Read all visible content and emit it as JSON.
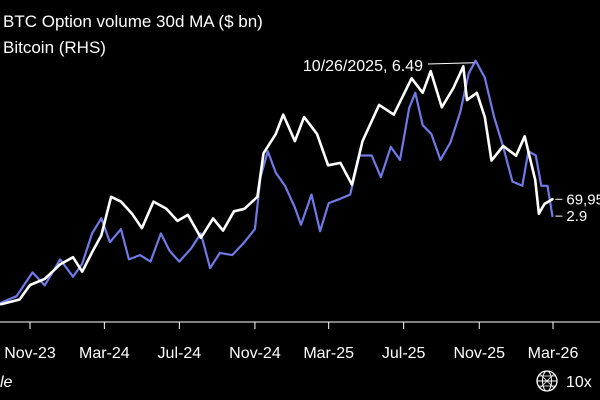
{
  "chart_data": {
    "type": "line",
    "legend": [
      "BTC Option volume 30d MA ($ bn)",
      "Bitcoin (RHS)"
    ],
    "legend_placement": "top-left",
    "x_ticks": [
      "Nov-23",
      "Mar-24",
      "Jul-24",
      "Nov-24",
      "Mar-25",
      "Jul-25",
      "Nov-25",
      "Mar-26"
    ],
    "grid": false,
    "y_left": {
      "unit": "$ bn",
      "range": [
        0.5,
        7.2
      ],
      "labels_visible": false
    },
    "y_right": {
      "unit": "USD",
      "range": [
        20000,
        140000
      ],
      "labels_visible": false
    },
    "series": [
      {
        "name": "BTC Option volume 30d MA ($ bn)",
        "color": "#6f7ae6",
        "axis": "left",
        "points": [
          [
            "2023-09-15",
            0.9
          ],
          [
            "2023-10-10",
            1.05
          ],
          [
            "2023-11-05",
            1.6
          ],
          [
            "2023-11-25",
            1.3
          ],
          [
            "2023-12-20",
            1.9
          ],
          [
            "2024-01-10",
            1.5
          ],
          [
            "2024-01-25",
            1.8
          ],
          [
            "2024-02-10",
            2.5
          ],
          [
            "2024-02-25",
            2.85
          ],
          [
            "2024-03-10",
            2.3
          ],
          [
            "2024-03-28",
            2.6
          ],
          [
            "2024-04-10",
            1.9
          ],
          [
            "2024-04-28",
            2.0
          ],
          [
            "2024-05-15",
            1.85
          ],
          [
            "2024-06-01",
            2.5
          ],
          [
            "2024-06-15",
            2.1
          ],
          [
            "2024-07-01",
            1.85
          ],
          [
            "2024-07-20",
            2.15
          ],
          [
            "2024-08-05",
            2.5
          ],
          [
            "2024-08-20",
            1.7
          ],
          [
            "2024-09-05",
            2.05
          ],
          [
            "2024-09-25",
            2.0
          ],
          [
            "2024-10-15",
            2.3
          ],
          [
            "2024-11-01",
            2.6
          ],
          [
            "2024-11-10",
            3.8
          ],
          [
            "2024-11-22",
            4.4
          ],
          [
            "2024-12-05",
            3.9
          ],
          [
            "2024-12-20",
            3.6
          ],
          [
            "2025-01-05",
            3.1
          ],
          [
            "2025-01-15",
            2.7
          ],
          [
            "2025-02-01",
            3.4
          ],
          [
            "2025-02-15",
            2.55
          ],
          [
            "2025-03-01",
            3.2
          ],
          [
            "2025-03-20",
            3.3
          ],
          [
            "2025-04-05",
            3.4
          ],
          [
            "2025-04-20",
            4.3
          ],
          [
            "2025-05-10",
            4.3
          ],
          [
            "2025-05-25",
            3.8
          ],
          [
            "2025-06-10",
            4.5
          ],
          [
            "2025-06-25",
            4.2
          ],
          [
            "2025-07-10",
            5.4
          ],
          [
            "2025-07-20",
            5.75
          ],
          [
            "2025-08-01",
            5.0
          ],
          [
            "2025-08-15",
            4.8
          ],
          [
            "2025-08-30",
            4.2
          ],
          [
            "2025-09-15",
            4.6
          ],
          [
            "2025-10-01",
            5.3
          ],
          [
            "2025-10-15",
            6.2
          ],
          [
            "2025-10-26",
            6.49
          ],
          [
            "2025-11-10",
            6.1
          ],
          [
            "2025-11-25",
            5.2
          ],
          [
            "2025-12-10",
            4.5
          ],
          [
            "2025-12-25",
            3.7
          ],
          [
            "2026-01-10",
            3.6
          ],
          [
            "2026-01-20",
            4.4
          ],
          [
            "2026-02-01",
            4.3
          ],
          [
            "2026-02-10",
            3.6
          ],
          [
            "2026-02-20",
            3.6
          ],
          [
            "2026-02-28",
            2.9
          ]
        ]
      },
      {
        "name": "Bitcoin (RHS)",
        "color": "#ffffff",
        "axis": "right",
        "points": [
          [
            "2023-09-15",
            26500
          ],
          [
            "2023-10-15",
            28500
          ],
          [
            "2023-11-01",
            34500
          ],
          [
            "2023-11-25",
            37000
          ],
          [
            "2023-12-20",
            43000
          ],
          [
            "2024-01-10",
            46000
          ],
          [
            "2024-01-25",
            40000
          ],
          [
            "2024-02-10",
            48000
          ],
          [
            "2024-02-25",
            55000
          ],
          [
            "2024-03-12",
            71000
          ],
          [
            "2024-03-28",
            69000
          ],
          [
            "2024-04-15",
            64000
          ],
          [
            "2024-05-01",
            58000
          ],
          [
            "2024-05-20",
            69000
          ],
          [
            "2024-06-10",
            66000
          ],
          [
            "2024-06-28",
            61000
          ],
          [
            "2024-07-15",
            63500
          ],
          [
            "2024-08-05",
            54000
          ],
          [
            "2024-08-25",
            62000
          ],
          [
            "2024-09-10",
            57000
          ],
          [
            "2024-09-28",
            65000
          ],
          [
            "2024-10-15",
            66000
          ],
          [
            "2024-11-05",
            71000
          ],
          [
            "2024-11-15",
            89000
          ],
          [
            "2024-12-05",
            97000
          ],
          [
            "2024-12-17",
            105000
          ],
          [
            "2025-01-05",
            94000
          ],
          [
            "2025-01-20",
            104000
          ],
          [
            "2025-02-10",
            97000
          ],
          [
            "2025-02-28",
            84000
          ],
          [
            "2025-03-20",
            85000
          ],
          [
            "2025-04-08",
            76000
          ],
          [
            "2025-04-25",
            94000
          ],
          [
            "2025-05-22",
            109000
          ],
          [
            "2025-06-15",
            105000
          ],
          [
            "2025-07-14",
            120000
          ],
          [
            "2025-08-01",
            114000
          ],
          [
            "2025-08-14",
            123000
          ],
          [
            "2025-09-01",
            108000
          ],
          [
            "2025-09-20",
            116000
          ],
          [
            "2025-10-06",
            125000
          ],
          [
            "2025-10-12",
            111000
          ],
          [
            "2025-10-28",
            114000
          ],
          [
            "2025-11-10",
            104000
          ],
          [
            "2025-11-21",
            86000
          ],
          [
            "2025-12-10",
            92000
          ],
          [
            "2025-12-31",
            88000
          ],
          [
            "2026-01-14",
            96000
          ],
          [
            "2026-01-31",
            78000
          ],
          [
            "2026-02-06",
            64000
          ],
          [
            "2026-02-15",
            68000
          ],
          [
            "2026-02-28",
            69950
          ]
        ]
      }
    ],
    "annotations": [
      {
        "text": "10/26/2025, 6.49",
        "series": 0,
        "x": "2025-10-26",
        "y": 6.49
      }
    ],
    "end_labels": [
      {
        "text": "2.9",
        "series": 0
      },
      {
        "text": "69,95",
        "series": 1
      }
    ]
  },
  "footer": {
    "left_text": "le",
    "brand_text": "10x",
    "logo_icon": "globe-icon"
  }
}
